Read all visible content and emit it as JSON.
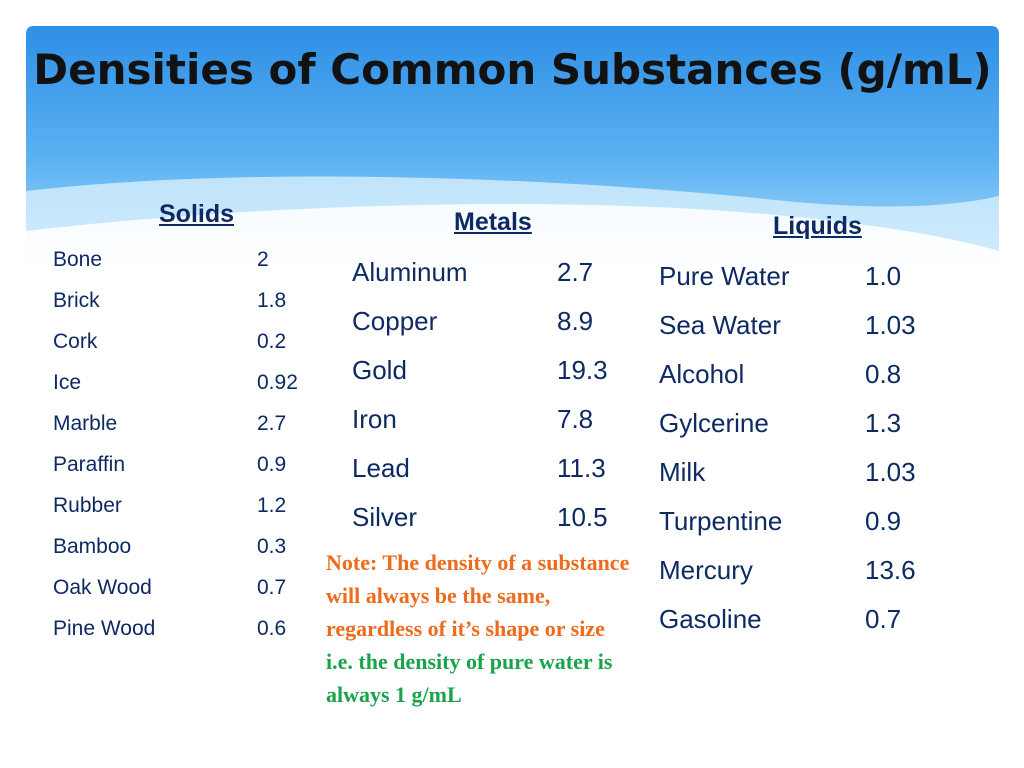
{
  "title": "Densities of Common Substances (g/mL)",
  "colors": {
    "header_sky_top": "#2e8fe6",
    "header_sky_light": "#8fd0f8",
    "text_navy": "#0e2a63",
    "note_orange": "#ee6a1c",
    "note_green": "#1aa34a"
  },
  "solids": {
    "heading": "Solids",
    "rows": [
      {
        "name": "Bone",
        "value": "2"
      },
      {
        "name": "Brick",
        "value": "1.8"
      },
      {
        "name": "Cork",
        "value": "0.2"
      },
      {
        "name": "Ice",
        "value": "0.92"
      },
      {
        "name": "Marble",
        "value": "2.7"
      },
      {
        "name": "Paraffin",
        "value": "0.9"
      },
      {
        "name": "Rubber",
        "value": "1.2"
      },
      {
        "name": "Bamboo",
        "value": "0.3"
      },
      {
        "name": "Oak Wood",
        "value": "0.7"
      },
      {
        "name": "Pine Wood",
        "value": "0.6"
      }
    ]
  },
  "metals": {
    "heading": "Metals",
    "rows": [
      {
        "name": "Aluminum",
        "value": "2.7"
      },
      {
        "name": "Copper",
        "value": "8.9"
      },
      {
        "name": "Gold",
        "value": "19.3"
      },
      {
        "name": "Iron",
        "value": "7.8"
      },
      {
        "name": "Lead",
        "value": "11.3"
      },
      {
        "name": "Silver",
        "value": "10.5"
      }
    ]
  },
  "liquids": {
    "heading": "Liquids",
    "rows": [
      {
        "name": "Pure Water",
        "value": "1.0"
      },
      {
        "name": "Sea Water",
        "value": "1.03"
      },
      {
        "name": "Alcohol",
        "value": "0.8"
      },
      {
        "name": "Gylcerine",
        "value": "1.3"
      },
      {
        "name": "Milk",
        "value": "1.03"
      },
      {
        "name": "Turpentine",
        "value": "0.9"
      },
      {
        "name": "Mercury",
        "value": "13.6"
      },
      {
        "name": "Gasoline",
        "value": "0.7"
      }
    ]
  },
  "note": {
    "main": "Note: The density of a substance will always be the same, regardless of it’s shape or size",
    "example": "i.e. the density of pure water is always 1 g/mL"
  }
}
